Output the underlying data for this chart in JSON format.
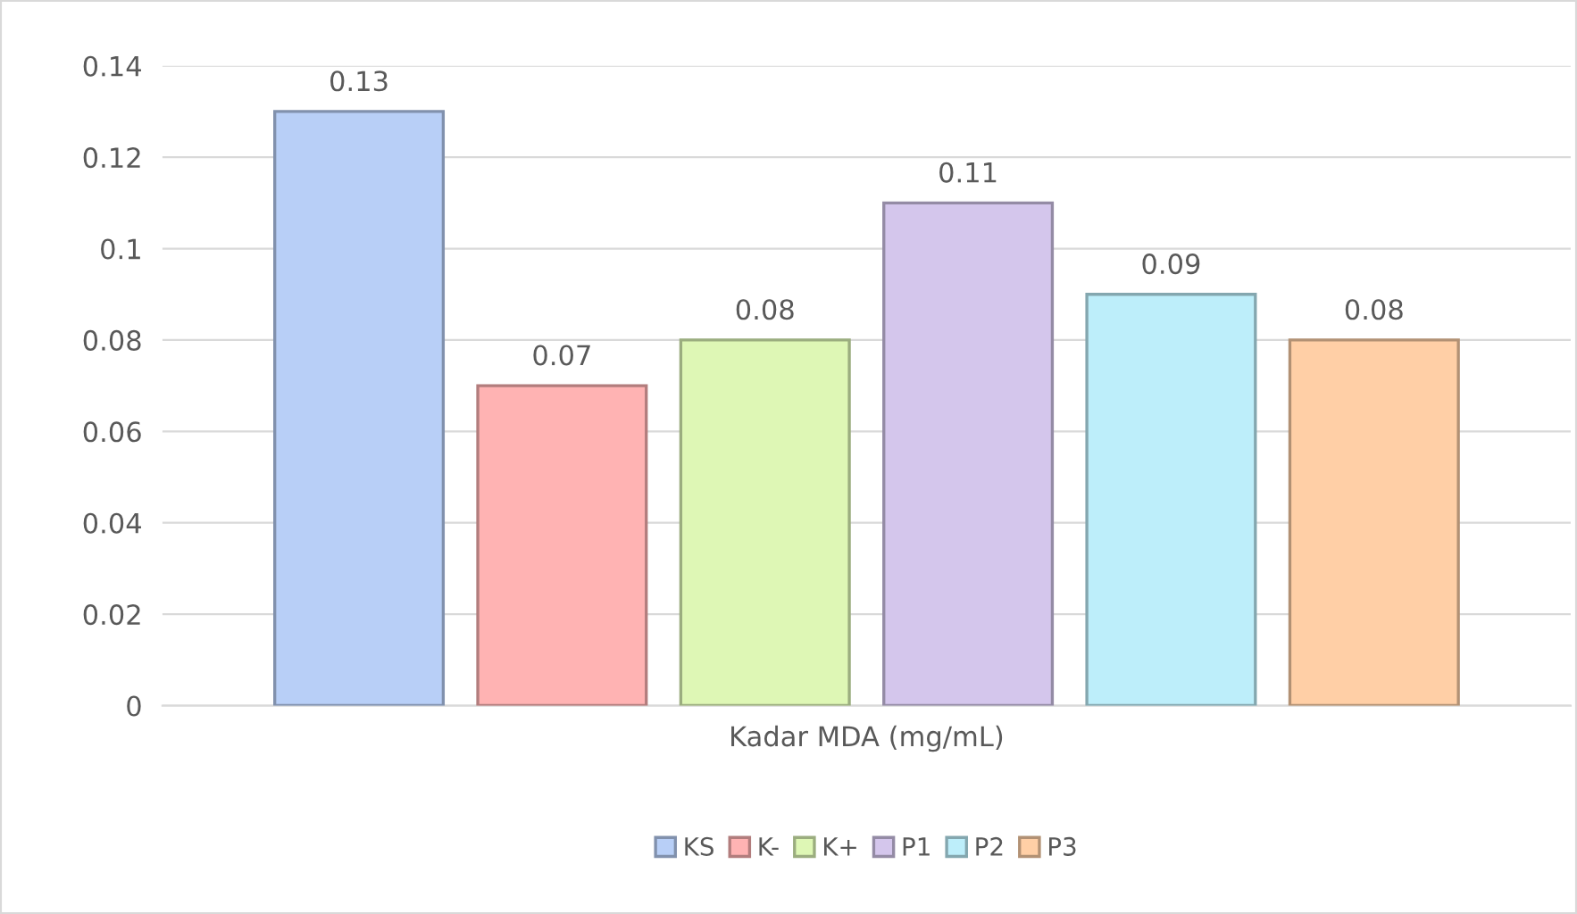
{
  "chart_data": {
    "type": "bar",
    "categories": [
      "Kadar MDA (mg/mL)"
    ],
    "series": [
      {
        "name": "KS",
        "color": "#b8cff7",
        "values": [
          0.13
        ]
      },
      {
        "name": "K-",
        "color": "#ffb3b3",
        "values": [
          0.07
        ]
      },
      {
        "name": "K+",
        "color": "#def7b5",
        "values": [
          0.08
        ]
      },
      {
        "name": "P1",
        "color": "#d4c6ec",
        "values": [
          0.11
        ]
      },
      {
        "name": "P2",
        "color": "#bdeefa",
        "values": [
          0.09
        ]
      },
      {
        "name": "P3",
        "color": "#ffcfa6",
        "values": [
          0.08
        ]
      }
    ],
    "ylim": [
      0,
      0.14
    ],
    "yticks": [
      0,
      0.02,
      0.04,
      0.06,
      0.08,
      0.1,
      0.12,
      0.14
    ],
    "grid": "y",
    "legend": "bottom",
    "data_labels": true
  }
}
